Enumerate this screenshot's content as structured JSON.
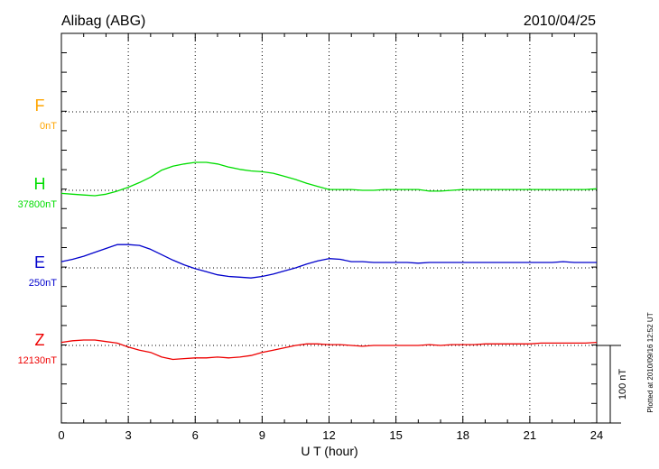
{
  "header": {
    "station": "Alibag (ABG)",
    "date": "2010/04/25"
  },
  "scale_bar": {
    "label": "100 nT",
    "value_nT": 100
  },
  "footer": {
    "plotted": "Plotted at 2010/09/16 12:52 UT"
  },
  "colors": {
    "F": "#ffa500",
    "H": "#00dd00",
    "E": "#0000cc",
    "Z": "#ee0000"
  },
  "chart_data": {
    "type": "line",
    "title": "Alibag (ABG)",
    "subtitle": "2010/04/25",
    "xlabel": "U T (hour)",
    "xlim": [
      0,
      24
    ],
    "xticks": [
      0,
      3,
      6,
      9,
      12,
      15,
      18,
      21,
      24
    ],
    "grid": true,
    "series": [
      {
        "name": "F",
        "baseline_label": "0nT",
        "color": "#ffa500",
        "x": [],
        "values": []
      },
      {
        "name": "H",
        "baseline_label": "37800nT",
        "color": "#00dd00",
        "x": [
          0,
          0.5,
          1,
          1.5,
          2,
          2.5,
          3,
          3.5,
          4,
          4.5,
          5,
          5.5,
          6,
          6.5,
          7,
          7.5,
          8,
          8.5,
          9,
          9.5,
          10,
          10.5,
          11,
          11.5,
          12,
          12.5,
          13,
          13.5,
          14,
          14.5,
          15,
          15.5,
          16,
          16.5,
          17,
          17.5,
          18,
          18.5,
          19,
          19.5,
          20,
          20.5,
          21,
          21.5,
          22,
          22.5,
          23,
          23.5,
          24
        ],
        "values": [
          37796,
          37795,
          37794,
          37793,
          37795,
          37799,
          37804,
          37810,
          37817,
          37826,
          37831,
          37834,
          37836,
          37836,
          37834,
          37830,
          37827,
          37825,
          37824,
          37822,
          37818,
          37814,
          37809,
          37805,
          37801,
          37801,
          37801,
          37800,
          37800,
          37801,
          37801,
          37801,
          37801,
          37799,
          37799,
          37800,
          37801,
          37801,
          37801,
          37801,
          37801,
          37801,
          37801,
          37801,
          37801,
          37801,
          37801,
          37801,
          37802
        ]
      },
      {
        "name": "E",
        "baseline_label": "250nT",
        "color": "#0000cc",
        "x": [
          0,
          0.5,
          1,
          1.5,
          2,
          2.5,
          3,
          3.5,
          4,
          4.5,
          5,
          5.5,
          6,
          6.5,
          7,
          7.5,
          8,
          8.5,
          9,
          9.5,
          10,
          10.5,
          11,
          11.5,
          12,
          12.5,
          13,
          13.5,
          14,
          14.5,
          15,
          15.5,
          16,
          16.5,
          17,
          17.5,
          18,
          18.5,
          19,
          19.5,
          20,
          20.5,
          21,
          21.5,
          22,
          22.5,
          23,
          23.5,
          24
        ],
        "values": [
          258,
          261,
          265,
          270,
          275,
          280,
          280,
          279,
          274,
          267,
          260,
          254,
          249,
          245,
          241,
          239,
          238,
          237,
          239,
          242,
          246,
          250,
          255,
          259,
          262,
          261,
          258,
          258,
          257,
          257,
          257,
          257,
          256,
          257,
          257,
          257,
          257,
          257,
          257,
          257,
          257,
          257,
          257,
          257,
          257,
          258,
          257,
          257,
          257
        ]
      },
      {
        "name": "Z",
        "baseline_label": "12130nT",
        "color": "#ee0000",
        "x": [
          0,
          0.5,
          1,
          1.5,
          2,
          2.5,
          3,
          3.5,
          4,
          4.5,
          5,
          5.5,
          6,
          6.5,
          7,
          7.5,
          8,
          8.5,
          9,
          9.5,
          10,
          10.5,
          11,
          11.5,
          12,
          12.5,
          13,
          13.5,
          14,
          14.5,
          15,
          15.5,
          16,
          16.5,
          17,
          17.5,
          18,
          18.5,
          19,
          19.5,
          20,
          20.5,
          21,
          21.5,
          22,
          22.5,
          23,
          23.5,
          24
        ],
        "values": [
          12134,
          12136,
          12137,
          12137,
          12135,
          12133,
          12128,
          12124,
          12121,
          12115,
          12112,
          12113,
          12114,
          12114,
          12115,
          12114,
          12115,
          12117,
          12121,
          12124,
          12127,
          12130,
          12132,
          12132,
          12131,
          12131,
          12130,
          12129,
          12130,
          12130,
          12130,
          12130,
          12130,
          12131,
          12130,
          12131,
          12131,
          12131,
          12132,
          12132,
          12132,
          12132,
          12132,
          12133,
          12133,
          12133,
          12133,
          12133,
          12134
        ]
      }
    ]
  }
}
